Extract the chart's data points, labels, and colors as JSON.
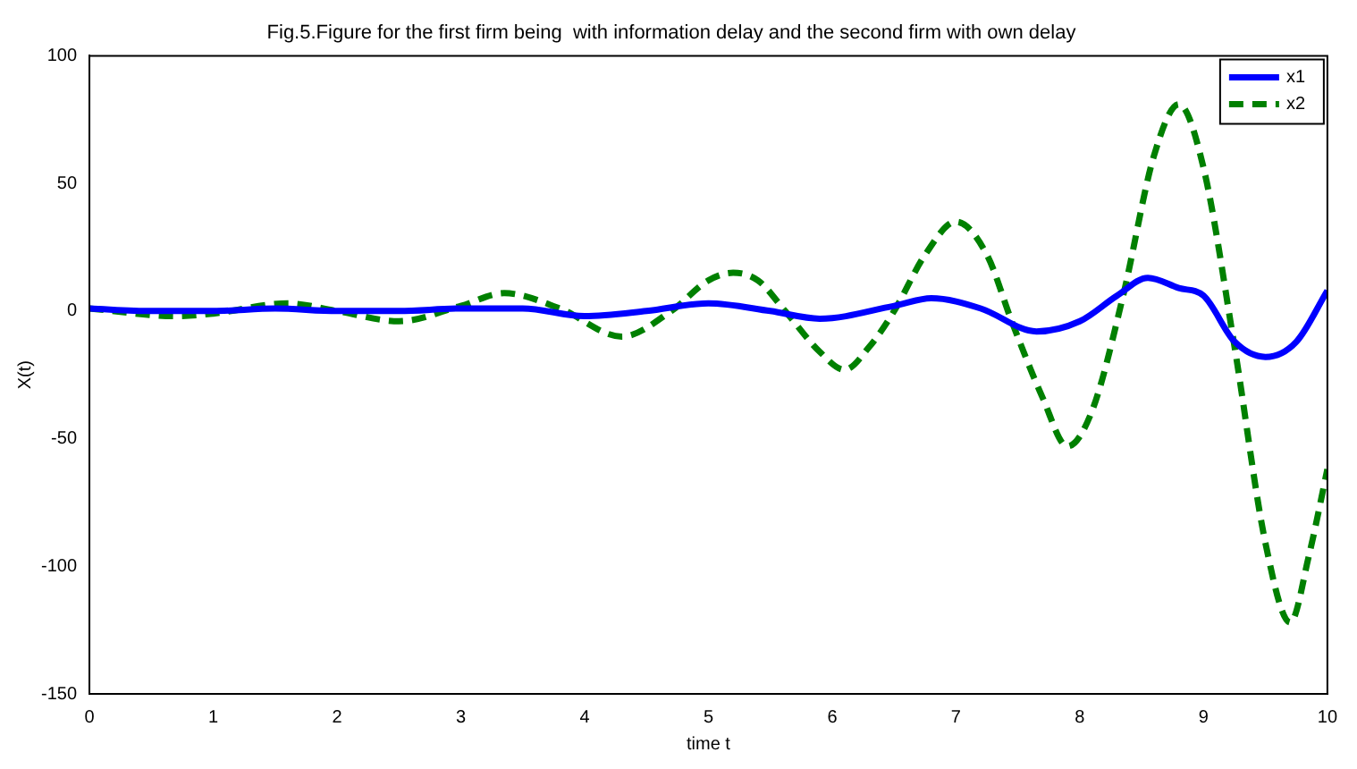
{
  "chart_data": {
    "type": "line",
    "title": "Fig.5.Figure for the first firm being  with information delay and the second firm with own delay",
    "xlabel": "time t",
    "ylabel": "X(t)",
    "xlim": [
      0,
      10
    ],
    "xticks": [
      0,
      1,
      2,
      3,
      4,
      5,
      6,
      7,
      8,
      9,
      10
    ],
    "ylim": [
      -150,
      100
    ],
    "yticks": [
      -150,
      -100,
      -50,
      0,
      50,
      100
    ],
    "legend": "top right",
    "grid": false,
    "series": [
      {
        "name": "x1",
        "color": "#0000ff",
        "line_style": "solid",
        "x": [
          0,
          0.5,
          1,
          1.5,
          2,
          2.5,
          3,
          3.5,
          4,
          4.5,
          5,
          5.5,
          5.9,
          6.5,
          6.8,
          7.2,
          7.65,
          8,
          8.3,
          8.55,
          8.8,
          9,
          9.25,
          9.5,
          9.75,
          10
        ],
        "values": [
          1,
          0,
          0,
          1,
          0,
          0,
          1,
          1,
          -2,
          0,
          3,
          0,
          -3,
          2,
          5,
          1,
          -8,
          -4,
          6,
          13,
          9,
          6,
          -12,
          -18,
          -12,
          8
        ]
      },
      {
        "name": "x2",
        "color": "#008000",
        "line_style": "dashed",
        "x": [
          0,
          0.7,
          1,
          1.6,
          2,
          2.5,
          3,
          3.35,
          3.8,
          4.3,
          4.7,
          5,
          5.2,
          5.4,
          5.62,
          5.9,
          6.1,
          6.3,
          6.5,
          6.75,
          7,
          7.25,
          7.45,
          7.7,
          7.9,
          8.1,
          8.35,
          8.6,
          8.8,
          9,
          9.25,
          9.5,
          9.7,
          9.85,
          10
        ],
        "values": [
          1,
          -2,
          -1,
          3,
          0,
          -4,
          2,
          7,
          1,
          -10,
          0,
          12,
          15,
          12,
          0,
          -16,
          -23,
          -14,
          0,
          22,
          35,
          22,
          -4,
          -34,
          -53,
          -39,
          6,
          61,
          81,
          56,
          -14,
          -91,
          -122,
          -96,
          -62
        ]
      }
    ]
  }
}
